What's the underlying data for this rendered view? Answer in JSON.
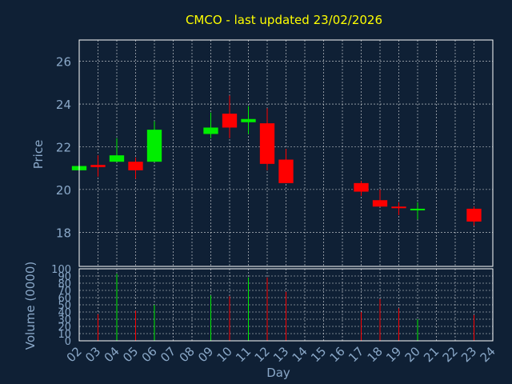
{
  "chart_data": {
    "type": "candlestick",
    "title": "CMCO - last updated 23/02/2026",
    "xlabel": "Day",
    "price_panel": {
      "ylabel": "Price",
      "ylim": [
        16.4,
        27.0
      ],
      "yticks": [
        18,
        20,
        22,
        24,
        26
      ],
      "grid": true
    },
    "volume_panel": {
      "ylabel": "Volume (0000)",
      "ylim": [
        0,
        100
      ],
      "yticks": [
        0,
        10,
        20,
        30,
        40,
        50,
        60,
        70,
        80,
        90,
        100
      ],
      "grid": true
    },
    "x_ticks": [
      "02",
      "03",
      "04",
      "05",
      "06",
      "07",
      "08",
      "09",
      "10",
      "11",
      "12",
      "13",
      "14",
      "15",
      "16",
      "17",
      "18",
      "19",
      "20",
      "21",
      "22",
      "23",
      "24"
    ],
    "colors": {
      "up": "#00ee00",
      "down": "#ff0000",
      "title": "#ffff00",
      "axis_text": "#8aa8c8",
      "background": "#0f2035"
    },
    "candles": [
      {
        "day": "02",
        "open": 20.9,
        "close": 21.1,
        "high": 21.1,
        "low": 20.9,
        "volume": 0
      },
      {
        "day": "03",
        "open": 21.15,
        "close": 21.05,
        "high": 21.6,
        "low": 20.6,
        "volume": 37
      },
      {
        "day": "04",
        "open": 21.3,
        "close": 21.6,
        "high": 22.4,
        "low": 21.3,
        "volume": 93
      },
      {
        "day": "05",
        "open": 21.3,
        "close": 20.9,
        "high": 21.5,
        "low": 20.5,
        "volume": 42
      },
      {
        "day": "06",
        "open": 21.3,
        "close": 22.8,
        "high": 23.2,
        "low": 21.3,
        "volume": 50
      },
      {
        "day": "09",
        "open": 22.6,
        "close": 22.9,
        "high": 23.6,
        "low": 22.4,
        "volume": 63
      },
      {
        "day": "10",
        "open": 23.55,
        "close": 22.9,
        "high": 24.4,
        "low": 22.4,
        "volume": 62
      },
      {
        "day": "11",
        "open": 23.15,
        "close": 23.3,
        "high": 23.9,
        "low": 22.6,
        "volume": 88
      },
      {
        "day": "12",
        "open": 23.1,
        "close": 21.2,
        "high": 23.8,
        "low": 20.9,
        "volume": 88
      },
      {
        "day": "13",
        "open": 21.4,
        "close": 20.3,
        "high": 21.9,
        "low": 20.3,
        "volume": 68
      },
      {
        "day": "17",
        "open": 20.3,
        "close": 19.9,
        "high": 20.4,
        "low": 19.7,
        "volume": 40
      },
      {
        "day": "18",
        "open": 19.5,
        "close": 19.2,
        "high": 20.0,
        "low": 19.2,
        "volume": 58
      },
      {
        "day": "19",
        "open": 19.2,
        "close": 19.15,
        "high": 19.4,
        "low": 18.8,
        "volume": 45
      },
      {
        "day": "20",
        "open": 19.05,
        "close": 19.1,
        "high": 19.4,
        "low": 18.6,
        "volume": 30
      },
      {
        "day": "23",
        "open": 19.1,
        "close": 18.5,
        "high": 19.2,
        "low": 18.3,
        "volume": 36
      }
    ]
  }
}
